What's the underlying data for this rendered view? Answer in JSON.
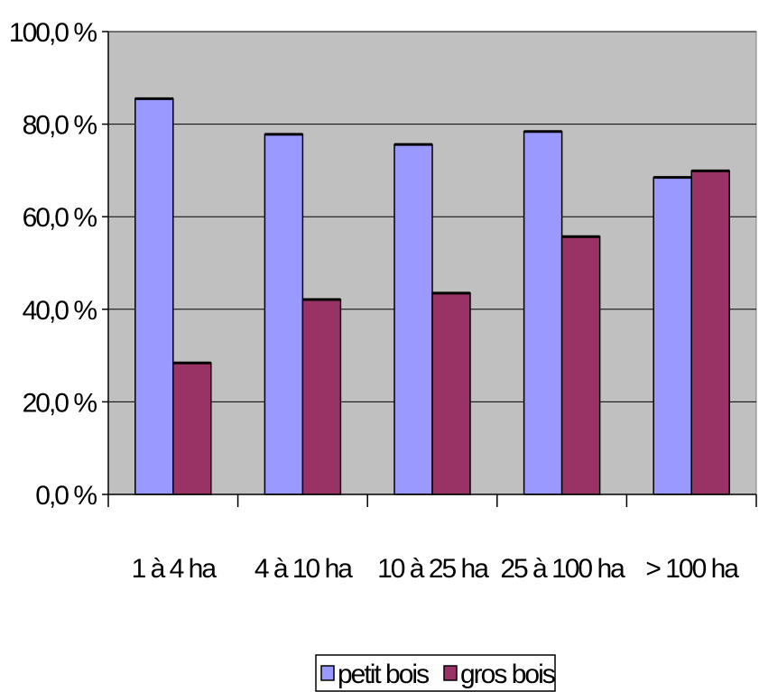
{
  "chart_data": {
    "type": "bar",
    "categories": [
      "1 à 4 ha",
      "4 à 10 ha",
      "10 à 25 ha",
      "25 à 100 ha",
      "> 100 ha"
    ],
    "series": [
      {
        "name": "petit bois",
        "values": [
          85.5,
          77.8,
          75.6,
          78.4,
          68.5
        ],
        "color": "#9999ff"
      },
      {
        "name": "gros bois",
        "values": [
          28.4,
          42.1,
          43.5,
          55.7,
          69.9
        ],
        "color": "#993366"
      }
    ],
    "ylim": [
      0,
      100
    ],
    "yticks": [
      0,
      20,
      40,
      60,
      80,
      100
    ],
    "ytick_labels": [
      "0,0 %",
      "20,0 %",
      "40,0 %",
      "60,0 %",
      "80,0 %",
      "100,0 %"
    ],
    "title": "",
    "xlabel": "",
    "ylabel": "",
    "grid": true,
    "plot_background": "#c0c0c0",
    "legend_position": "bottom"
  }
}
